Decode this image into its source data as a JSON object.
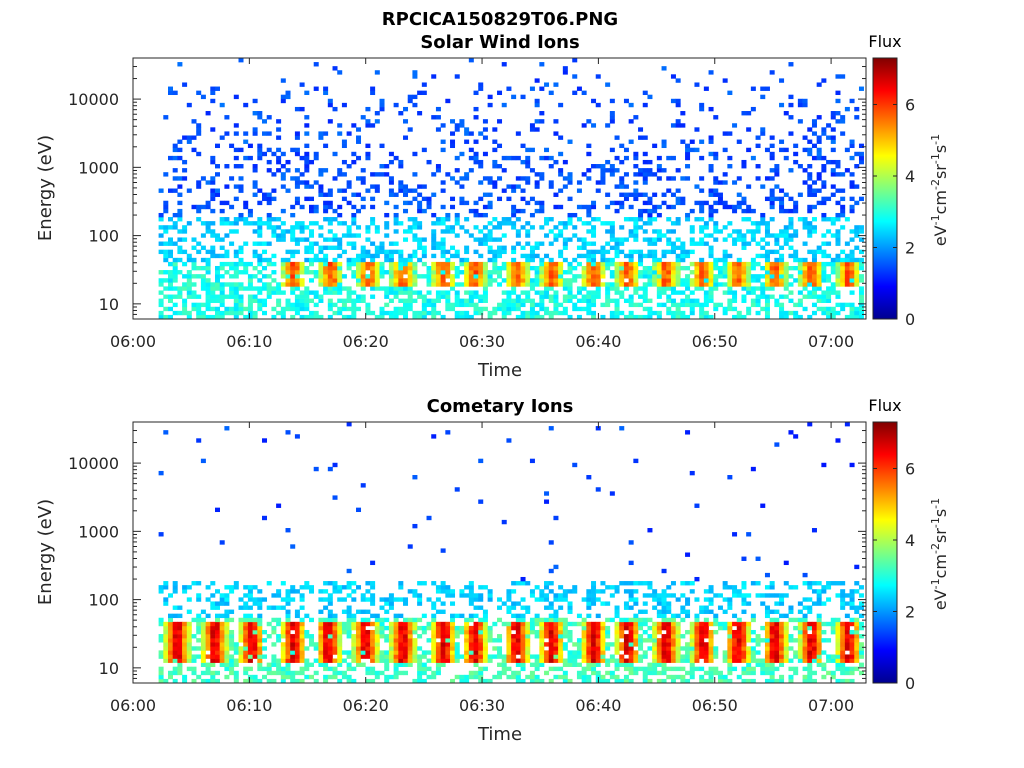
{
  "figure": {
    "title": "RPCICA150829T06.PNG"
  },
  "chart_data": [
    {
      "type": "heatmap",
      "title": "Solar Wind Ions",
      "xlabel": "Time",
      "ylabel": "Energy (eV)",
      "x_ticks": [
        "06:00",
        "06:10",
        "06:20",
        "06:30",
        "06:40",
        "06:50",
        "07:00"
      ],
      "x_tick_minutes": [
        0,
        10,
        20,
        30,
        40,
        50,
        60
      ],
      "xlim_minutes": [
        0,
        63
      ],
      "y_scale": "log",
      "ylim": [
        6,
        40000
      ],
      "y_ticks": [
        "10",
        "100",
        "1000",
        "10000"
      ],
      "y_tick_values": [
        10,
        100,
        1000,
        10000
      ],
      "colorbar": {
        "title": "Flux",
        "unit": "eV-1cm-2sr-1s-1",
        "range": [
          0,
          7.3
        ],
        "ticks": [
          "0",
          "2",
          "4",
          "6"
        ],
        "tick_values": [
          0,
          2,
          4,
          6
        ],
        "colormap": "jet"
      },
      "data_time_range_minutes": [
        2.2,
        62.8
      ],
      "peak_times_minutes": [
        13.8,
        17.0,
        20.2,
        23.2,
        26.7,
        29.4,
        33.0,
        36.0,
        39.6,
        42.5,
        45.8,
        49.0,
        52.0,
        55.2,
        58.3,
        61.5
      ],
      "background_band": {
        "energy_eV": [
          10,
          30
        ],
        "flux": 2.9
      },
      "peak_band": {
        "energy_eV": [
          18,
          45
        ],
        "flux": 5.8
      },
      "high_energy_flux": 1.4
    },
    {
      "type": "heatmap",
      "title": "Cometary Ions",
      "xlabel": "Time",
      "ylabel": "Energy (eV)",
      "x_ticks": [
        "06:00",
        "06:10",
        "06:20",
        "06:30",
        "06:40",
        "06:50",
        "07:00"
      ],
      "x_tick_minutes": [
        0,
        10,
        20,
        30,
        40,
        50,
        60
      ],
      "xlim_minutes": [
        0,
        63
      ],
      "y_scale": "log",
      "ylim": [
        6,
        40000
      ],
      "y_ticks": [
        "10",
        "100",
        "1000",
        "10000"
      ],
      "y_tick_values": [
        10,
        100,
        1000,
        10000
      ],
      "colorbar": {
        "title": "Flux",
        "unit": "eV-1cm-2sr-1s-1",
        "range": [
          0,
          7.3
        ],
        "ticks": [
          "0",
          "2",
          "4",
          "6"
        ],
        "tick_values": [
          0,
          2,
          4,
          6
        ],
        "colormap": "jet"
      },
      "data_time_range_minutes": [
        2.2,
        62.8
      ],
      "peak_times_minutes": [
        3.8,
        7.0,
        10.2,
        13.8,
        16.8,
        20.0,
        23.2,
        26.7,
        29.4,
        33.0,
        36.0,
        39.6,
        42.5,
        45.8,
        49.0,
        52.0,
        55.2,
        58.3,
        61.5
      ],
      "background_band": {
        "energy_eV": [
          8,
          40
        ],
        "flux": 3.2
      },
      "peak_band": {
        "energy_eV": [
          12,
          45
        ],
        "flux": 6.6
      },
      "high_energy_flux": 1.3
    }
  ]
}
